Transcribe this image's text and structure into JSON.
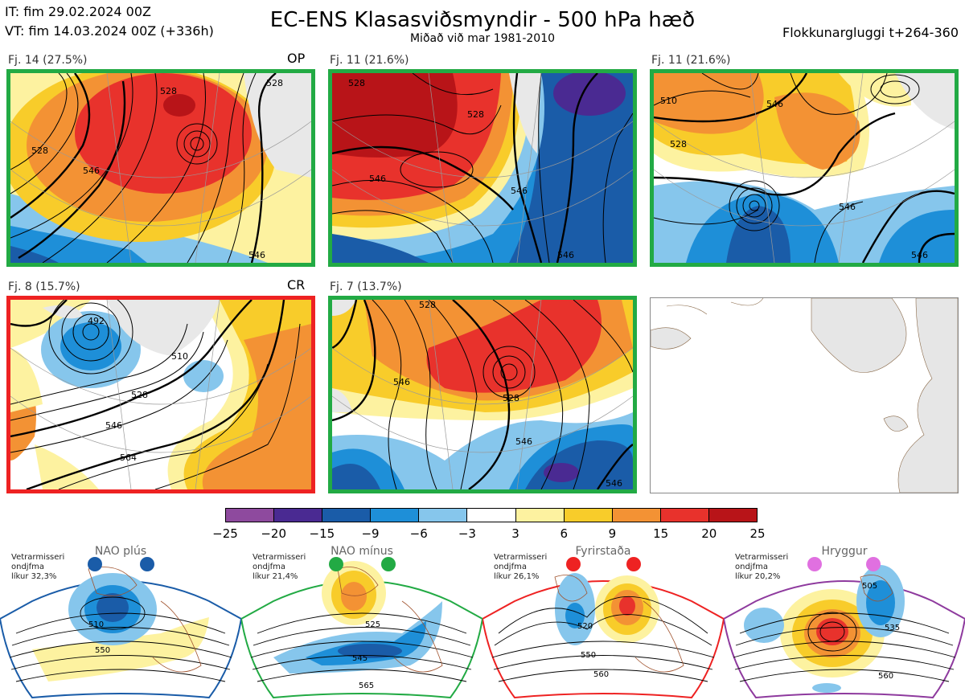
{
  "header": {
    "it": "IT: fim 29.02.2024 00Z",
    "vt": "VT: fim 14.03.2024 00Z  (+336h)",
    "title": "EC-ENS Klasasviðsmyndir - 500 hPa hæð",
    "subtitle": "Miðað við mar 1981-2010",
    "window": "Flokkunargluggi t+264-360"
  },
  "panels": [
    {
      "label": "Fj. 14 (27.5%)",
      "tag": "OP",
      "border": "green",
      "contours": [
        "528",
        "528",
        "546",
        "528",
        "546"
      ]
    },
    {
      "label": "Fj. 11 (21.6%)",
      "tag": "",
      "border": "green",
      "contours": [
        "528",
        "528",
        "546",
        "546",
        "546"
      ]
    },
    {
      "label": "Fj. 11 (21.6%)",
      "tag": "",
      "border": "green",
      "contours": [
        "510",
        "528",
        "546",
        "546",
        "546"
      ]
    },
    {
      "label": "Fj. 8 (15.7%)",
      "tag": "CR",
      "border": "red",
      "contours": [
        "492",
        "510",
        "528",
        "546",
        "564"
      ]
    },
    {
      "label": "Fj. 7 (13.7%)",
      "tag": "",
      "border": "green",
      "contours": [
        "528",
        "546",
        "528",
        "546",
        "546"
      ]
    }
  ],
  "colorbar": {
    "ticks": [
      "−25",
      "−20",
      "−15",
      "−9",
      "−6",
      "−3",
      "3",
      "6",
      "9",
      "15",
      "20",
      "25"
    ],
    "colors": [
      "#8e4a9e",
      "#4a2a92",
      "#1a5ca8",
      "#1e8fd8",
      "#86c6ec",
      "#ffffff",
      "#fdf2a0",
      "#f8cc2a",
      "#f39234",
      "#e8322c",
      "#b81418"
    ]
  },
  "regimes": [
    {
      "name": "NAO plús",
      "stat1": "Vetrarmisseri",
      "stat2": "ondjfma",
      "stat3": "líkur 32,3%",
      "color": "#1a5ca8",
      "contours": [
        "510",
        "550"
      ]
    },
    {
      "name": "NAO mínus",
      "stat1": "Vetrarmisseri",
      "stat2": "ondjfma",
      "stat3": "líkur 21,4%",
      "color": "#22aa44",
      "contours": [
        "525",
        "545",
        "565"
      ]
    },
    {
      "name": "Fyrirstaða",
      "stat1": "Vetrarmisseri",
      "stat2": "ondjfma",
      "stat3": "líkur 26,1%",
      "color": "#ee2222",
      "contours": [
        "520",
        "550",
        "560"
      ]
    },
    {
      "name": "Hryggur",
      "stat1": "Vetrarmisseri",
      "stat2": "ondjfma",
      "stat3": "líkur 20,2%",
      "color": "#e070e0",
      "contours": [
        "505",
        "535",
        "560"
      ]
    }
  ]
}
